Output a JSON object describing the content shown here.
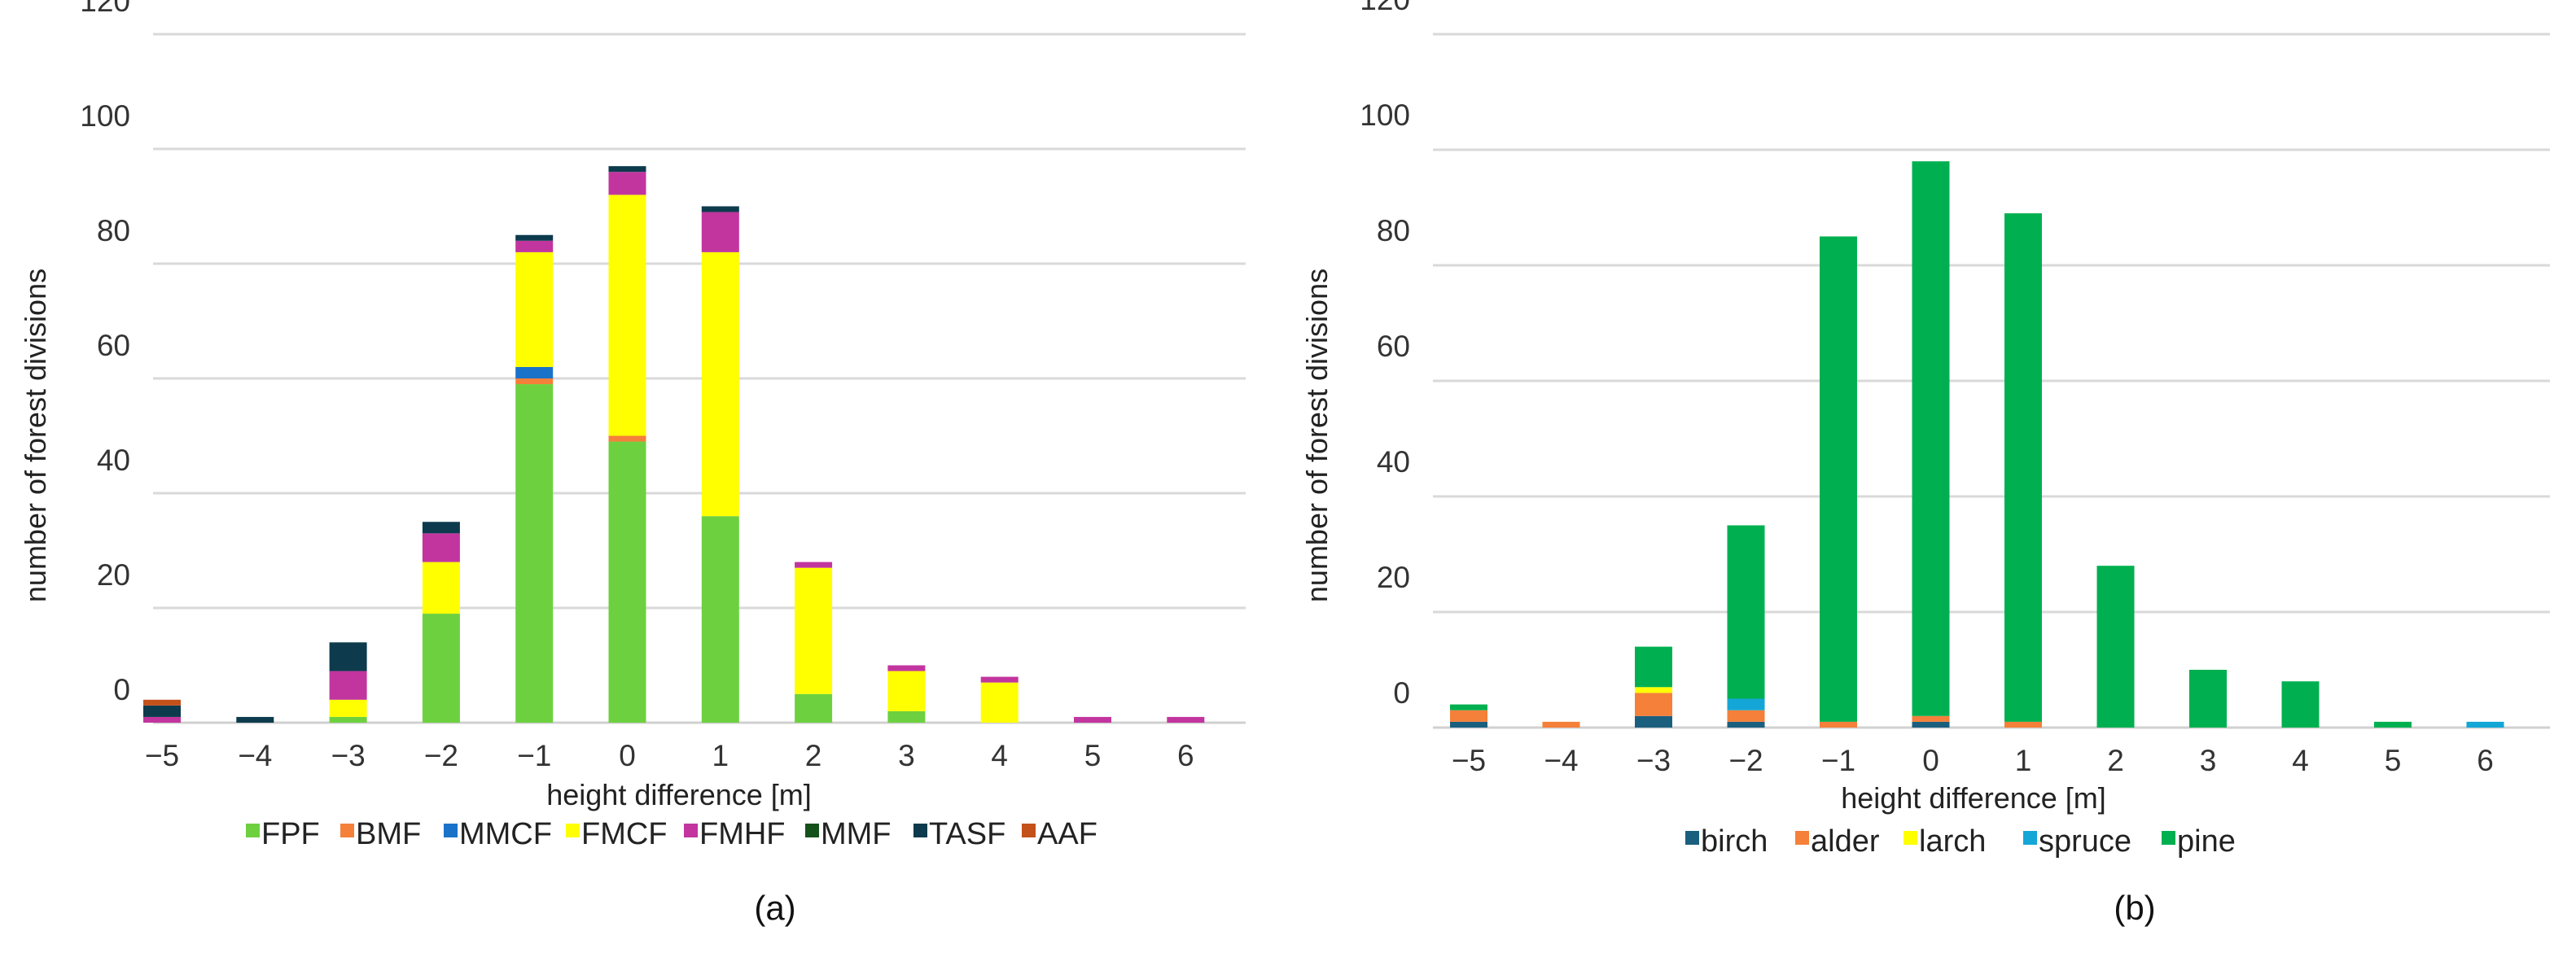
{
  "chart_data": [
    {
      "type": "bar",
      "stacked": true,
      "panel_label": "(a)",
      "xlabel": "height difference [m]",
      "ylabel": "number of forest divisions",
      "ylim": [
        0,
        120
      ],
      "yticks": [
        "0",
        "20",
        "40",
        "60",
        "80",
        "100",
        "120"
      ],
      "categories": [
        "−5",
        "−4",
        "−3",
        "−2",
        "−1",
        "0",
        "1",
        "2",
        "3",
        "4",
        "5",
        "6"
      ],
      "legend_position": "bottom",
      "series": [
        {
          "name": "FPF",
          "color": "#6dd13f",
          "values": [
            0,
            0,
            1,
            19,
            59,
            49,
            36,
            5,
            2,
            0,
            0,
            0
          ]
        },
        {
          "name": "BMF",
          "color": "#f4803a",
          "values": [
            0,
            0,
            0,
            0,
            1,
            1,
            0,
            0,
            0,
            0,
            0,
            0
          ]
        },
        {
          "name": "MMCF",
          "color": "#1a73c9",
          "values": [
            0,
            0,
            0,
            0,
            2,
            0,
            0,
            0,
            0,
            0,
            0,
            0
          ]
        },
        {
          "name": "FMCF",
          "color": "#ffff00",
          "values": [
            0,
            0,
            3,
            9,
            20,
            42,
            46,
            22,
            7,
            7,
            0,
            0
          ]
        },
        {
          "name": "FMHF",
          "color": "#c2359f",
          "values": [
            1,
            0,
            5,
            5,
            2,
            4,
            7,
            1,
            1,
            1,
            1,
            1
          ]
        },
        {
          "name": "MMF",
          "color": "#14521c",
          "values": [
            0,
            0,
            0,
            0,
            0,
            0,
            0,
            0,
            0,
            0,
            0,
            0
          ]
        },
        {
          "name": "TASF",
          "color": "#0d3b4d",
          "values": [
            2,
            1,
            5,
            2,
            1,
            1,
            1,
            0,
            0,
            0,
            0,
            0
          ]
        },
        {
          "name": "AAF",
          "color": "#c4511a",
          "values": [
            1,
            0,
            0,
            0,
            0,
            0,
            0,
            0,
            0,
            0,
            0,
            0
          ]
        }
      ]
    },
    {
      "type": "bar",
      "stacked": true,
      "panel_label": "(b)",
      "xlabel": "height difference [m]",
      "ylabel": "number of forest divisions",
      "ylim": [
        0,
        120
      ],
      "yticks": [
        "0",
        "20",
        "40",
        "60",
        "80",
        "100",
        "120"
      ],
      "categories": [
        "−5",
        "−4",
        "−3",
        "−2",
        "−1",
        "0",
        "1",
        "2",
        "3",
        "4",
        "5",
        "6"
      ],
      "legend_position": "bottom",
      "series": [
        {
          "name": "birch",
          "color": "#1b5f7e",
          "values": [
            1,
            0,
            2,
            1,
            0,
            1,
            0,
            0,
            0,
            0,
            0,
            0
          ]
        },
        {
          "name": "alder",
          "color": "#f4803a",
          "values": [
            2,
            1,
            4,
            2,
            1,
            1,
            1,
            0,
            0,
            0,
            0,
            0
          ]
        },
        {
          "name": "larch",
          "color": "#ffff00",
          "values": [
            0,
            0,
            1,
            0,
            0,
            0,
            0,
            0,
            0,
            0,
            0,
            0
          ]
        },
        {
          "name": "spruce",
          "color": "#13a6d6",
          "values": [
            0,
            0,
            0,
            2,
            0,
            0,
            0,
            0,
            0,
            0,
            0,
            1
          ]
        },
        {
          "name": "pine",
          "color": "#00b050",
          "values": [
            1,
            0,
            7,
            30,
            84,
            96,
            88,
            28,
            10,
            8,
            1,
            0
          ]
        }
      ]
    }
  ]
}
